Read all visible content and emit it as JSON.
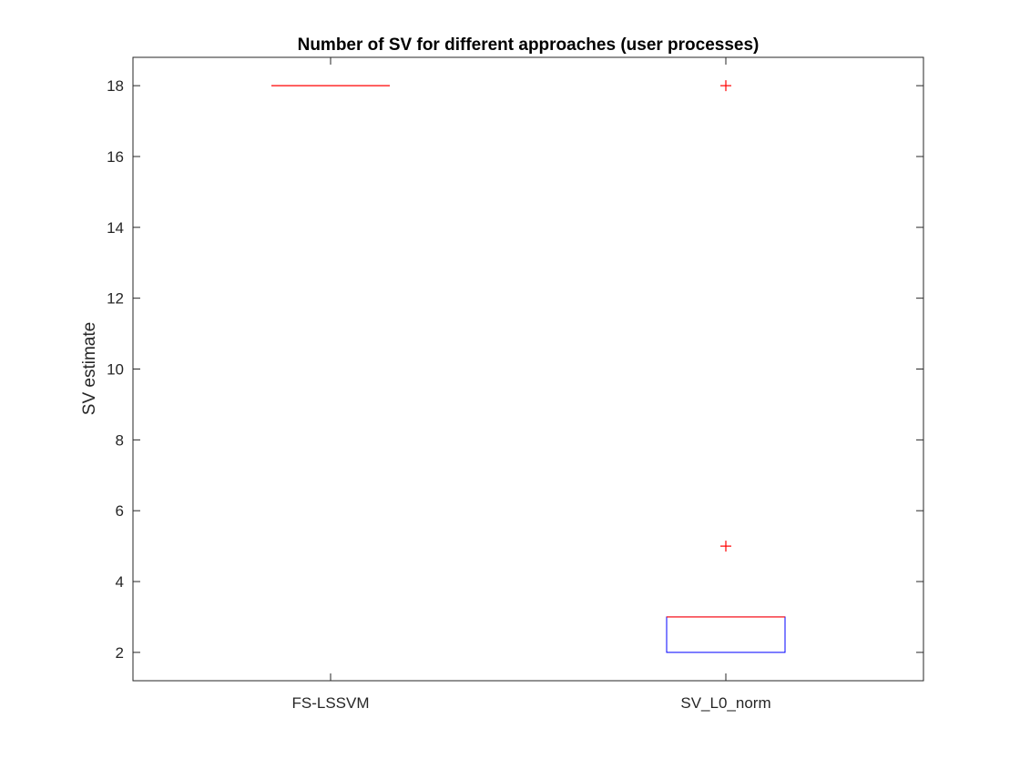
{
  "chart_data": {
    "type": "boxplot",
    "title": "Number of SV for different approaches (user processes)",
    "xlabel": "",
    "ylabel": "SV estimate",
    "categories": [
      "FS-LSSVM",
      "SV_L0_norm"
    ],
    "ylim": [
      1.2,
      18.8
    ],
    "yticks": [
      2,
      4,
      6,
      8,
      10,
      12,
      14,
      16,
      18
    ],
    "ytick_labels": [
      "2",
      "4",
      "6",
      "8",
      "10",
      "12",
      "14",
      "16",
      "18"
    ],
    "grid": false,
    "boxes": [
      {
        "name": "FS-LSSVM",
        "q1": 18,
        "median": 18,
        "q3": 18,
        "whisker_low": 18,
        "whisker_high": 18,
        "outliers": []
      },
      {
        "name": "SV_L0_norm",
        "q1": 2,
        "median": 3,
        "q3": 3,
        "whisker_low": 2,
        "whisker_high": 3,
        "outliers": [
          18,
          5
        ]
      }
    ],
    "colors": {
      "box": "#0000ff",
      "median": "#ff0000",
      "outlier": "#ff0000",
      "whisker": "#000000",
      "axis": "#262626"
    }
  }
}
